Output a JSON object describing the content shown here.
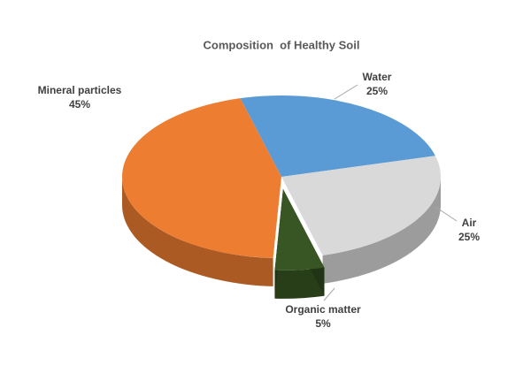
{
  "chart_data": {
    "type": "pie",
    "title": "Composition  of Healthy Soil",
    "categories": [
      "Water",
      "Air",
      "Organic matter",
      "Mineral particles"
    ],
    "values": [
      25,
      25,
      5,
      45
    ],
    "value_labels": [
      "25%",
      "25%",
      "5%",
      "45%"
    ],
    "colors": [
      "#5b9bd5",
      "#d9d9d9",
      "#375623",
      "#ed7d31"
    ],
    "exploded": [
      "Organic matter"
    ]
  }
}
